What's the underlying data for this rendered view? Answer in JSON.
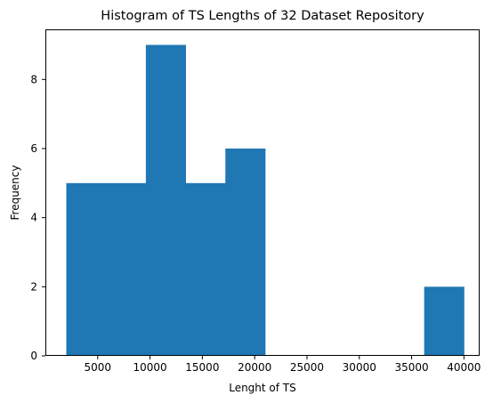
{
  "chart_data": {
    "type": "bar",
    "title": "Histogram of TS Lengths of 32 Dataset Repository",
    "xlabel": "Lenght of TS",
    "ylabel": "Frequency",
    "xlim": [
      0,
      41500
    ],
    "ylim": [
      0,
      9.45
    ],
    "bin_edges": [
      2000,
      5800,
      9600,
      13400,
      17200,
      21000,
      24800,
      28600,
      32400,
      36200,
      40000
    ],
    "values": [
      5,
      5,
      9,
      5,
      6,
      0,
      0,
      0,
      0,
      2
    ],
    "xticks": [
      5000,
      10000,
      15000,
      20000,
      25000,
      30000,
      35000,
      40000
    ],
    "xtick_labels": [
      "5000",
      "10000",
      "15000",
      "20000",
      "25000",
      "30000",
      "35000",
      "40000"
    ],
    "yticks": [
      0,
      2,
      4,
      6,
      8
    ],
    "ytick_labels": [
      "0",
      "2",
      "4",
      "6",
      "8"
    ],
    "bar_color": "#1f77b4",
    "grid": false,
    "legend": "none"
  }
}
